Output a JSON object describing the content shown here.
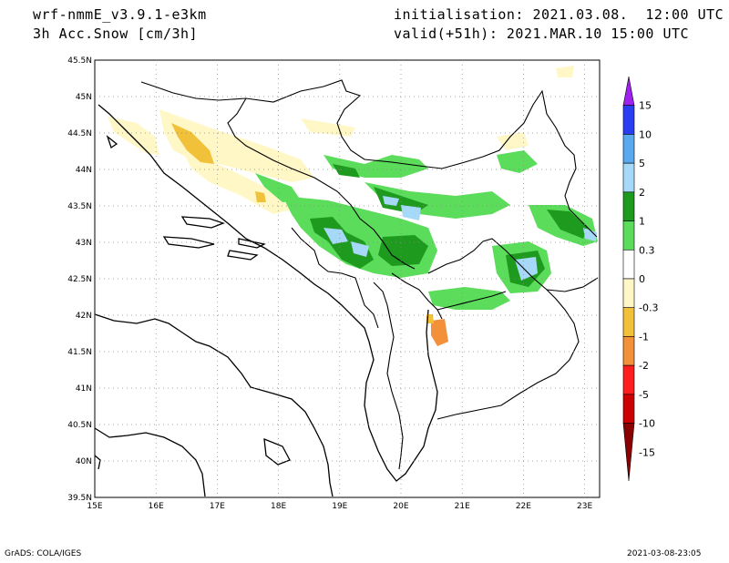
{
  "header": {
    "model": "wrf-nmmE_v3.9.1-e3km",
    "variable": "3h Acc.Snow [cm/3h]",
    "init": "initialisation: 2021.03.08.  12:00 UTC",
    "valid": "valid(+51h): 2021.MAR.10 15:00 UTC"
  },
  "footer": {
    "left": "GrADS: COLA/IGES",
    "right": "2021-03-08-23:05"
  },
  "map": {
    "lat_labels": [
      "45.5N",
      "45N",
      "44.5N",
      "44N",
      "43.5N",
      "43N",
      "42.5N",
      "42N",
      "41.5N",
      "41N",
      "40.5N",
      "40N",
      "39.5N"
    ],
    "lon_labels": [
      "15E",
      "16E",
      "17E",
      "18E",
      "19E",
      "20E",
      "21E",
      "22E",
      "23E"
    ]
  },
  "legend": {
    "labels": [
      "15",
      "10",
      "5",
      "2",
      "1",
      "0.3",
      "0",
      "-0.3",
      "-1",
      "-2",
      "-5",
      "-10",
      "-15"
    ],
    "colors": [
      "#a020f0",
      "#2b3df0",
      "#5aa9f0",
      "#a6d8f7",
      "#1e9a1e",
      "#5bdc5b",
      "#ffffff",
      "#fff7c6",
      "#f2c13a",
      "#f2913a",
      "#ff1e1e",
      "#cc0000",
      "#8b0000"
    ]
  }
}
